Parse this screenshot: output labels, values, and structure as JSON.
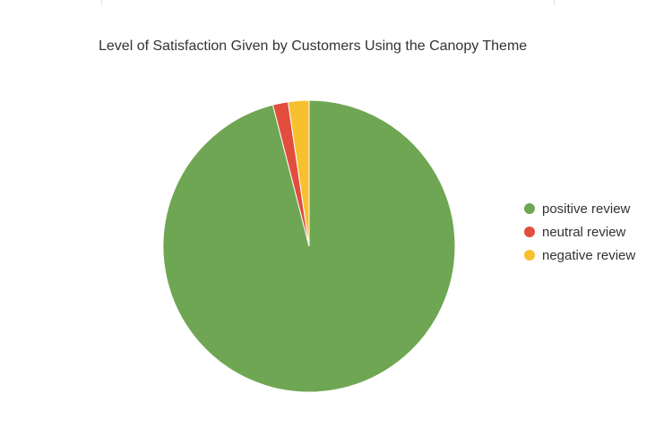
{
  "chart_data": {
    "type": "pie",
    "title": "Level of Satisfaction Given by Customers Using the Canopy Theme",
    "categories": [
      "positive review",
      "neutral review",
      "negative review"
    ],
    "values": [
      96,
      1.7,
      2.3
    ],
    "colors": [
      "#6fa653",
      "#e24d3d",
      "#f6c02f"
    ],
    "legend_position": "right",
    "start_angle": "top",
    "direction": "clockwise"
  }
}
